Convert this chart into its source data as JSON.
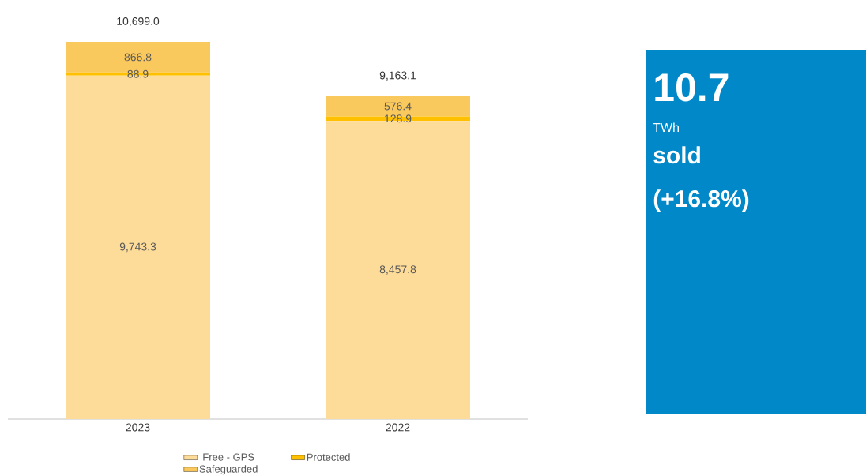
{
  "chart_data": {
    "type": "bar",
    "stacked": true,
    "legend": "bottom",
    "categories": [
      "2023",
      "2022"
    ],
    "series": [
      {
        "name": "Free - GPS",
        "color": "#fddb99",
        "values": [
          9743.3,
          8457.8
        ],
        "value_labels": [
          "9,743.3",
          "8,457.8"
        ]
      },
      {
        "name": "Protected",
        "color": "#ffc000",
        "values": [
          88.9,
          128.9
        ],
        "value_labels": [
          "88.9",
          "128.9"
        ]
      },
      {
        "name": "Safeguarded",
        "color": "#fac95e",
        "values": [
          866.8,
          576.4
        ],
        "value_labels": [
          "866.8",
          "576.4"
        ]
      }
    ],
    "totals": [
      "10,699.0",
      "9,163.1"
    ],
    "annotations": [
      "10.7",
      "TWh",
      "sold",
      "(+16.8%)"
    ]
  }
}
